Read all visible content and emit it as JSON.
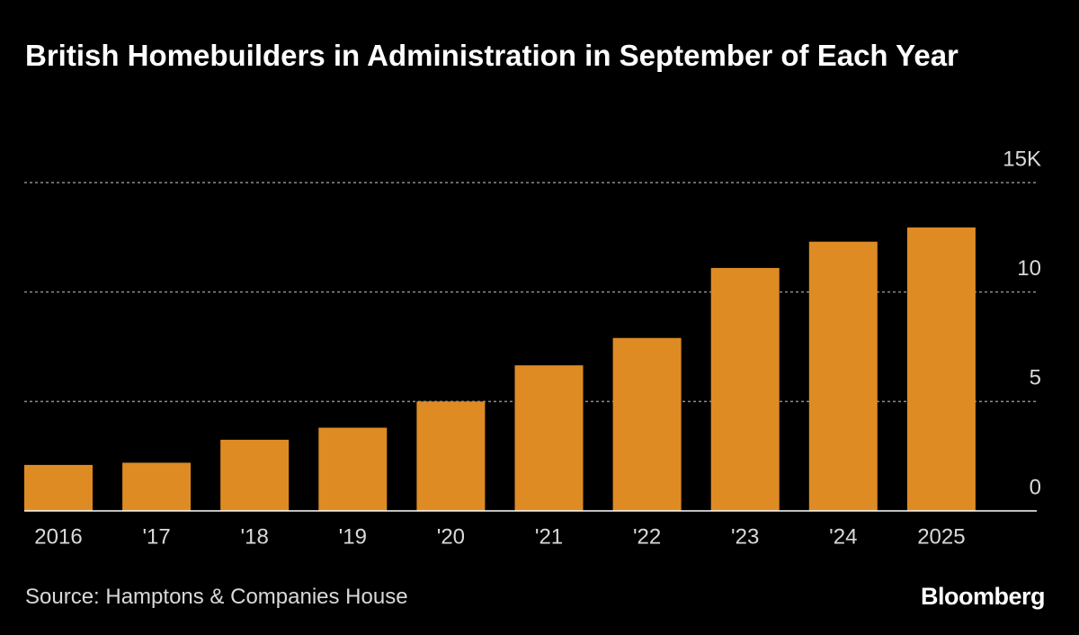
{
  "chart_data": {
    "type": "bar",
    "title": "British Homebuilders in Administration in September of Each Year",
    "source": "Source: Hamptons & Companies House",
    "logo": "Bloomberg",
    "categories": [
      "2016",
      "'17",
      "'18",
      "'19",
      "'20",
      "'21",
      "'22",
      "'23",
      "'24",
      "2025"
    ],
    "values": [
      2.1,
      2.2,
      3.25,
      3.8,
      5.0,
      6.65,
      7.9,
      11.1,
      12.3,
      12.95
    ],
    "color": "#de8b24",
    "ylim": [
      0,
      15
    ],
    "yticks": [
      0,
      5,
      10,
      {
        "value": 15,
        "label": "15K"
      }
    ],
    "grid": true
  }
}
